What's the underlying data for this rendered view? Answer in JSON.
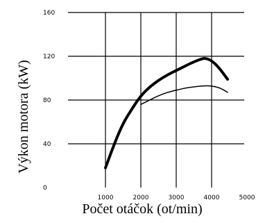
{
  "chart_data": {
    "type": "line",
    "xlabel": "Počet otáčok (ot/min)",
    "ylabel": "Výkon motora (kW)",
    "xlim": [
      1000,
      5000
    ],
    "ylim": [
      0,
      160
    ],
    "x_tick_labels": [
      "1000",
      "2000",
      "3000",
      "4000",
      "5000"
    ],
    "y_tick_labels": [
      "0",
      "40",
      "80",
      "120",
      "160"
    ],
    "grid": "vertical and horizontal lines",
    "series": [
      {
        "style": "thick",
        "x": [
          1000,
          1250,
          1500,
          1750,
          2000,
          2250,
          2500,
          2750,
          3000,
          3250,
          3500,
          3750,
          3850,
          4000,
          4200,
          4450
        ],
        "y": [
          18,
          40,
          59,
          72,
          84,
          92,
          98,
          103,
          107,
          111,
          115,
          118,
          118,
          116,
          110,
          99
        ]
      },
      {
        "style": "thin",
        "x": [
          2000,
          2250,
          2500,
          2750,
          3000,
          3250,
          3500,
          3750,
          4000,
          4250,
          4450
        ],
        "y": [
          76,
          80,
          84,
          87,
          89,
          91,
          92,
          93,
          93,
          91,
          87
        ]
      }
    ]
  }
}
